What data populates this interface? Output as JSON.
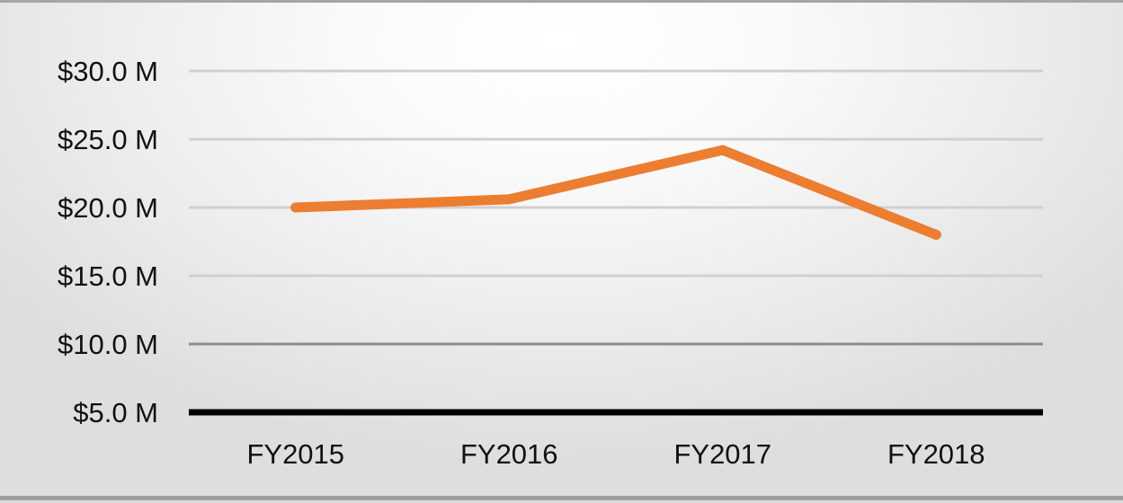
{
  "chart_data": {
    "type": "line",
    "categories": [
      "FY2015",
      "FY2016",
      "FY2017",
      "FY2018"
    ],
    "series": [
      {
        "values": [
          20.0,
          20.6,
          24.2,
          18.0
        ]
      }
    ],
    "y_ticks": [
      "$5.0 M",
      "$10.0 M",
      "$15.0 M",
      "$20.0 M",
      "$25.0 M",
      "$30.0 M"
    ],
    "y_tick_values": [
      5,
      10,
      15,
      20,
      25,
      30
    ],
    "ylim": [
      5,
      30
    ],
    "grid": true,
    "legend": "none",
    "colors": {
      "line": "#ed7d31",
      "gridline": "#d0d0d0",
      "baseline": "#000000",
      "text": "#111111"
    }
  }
}
